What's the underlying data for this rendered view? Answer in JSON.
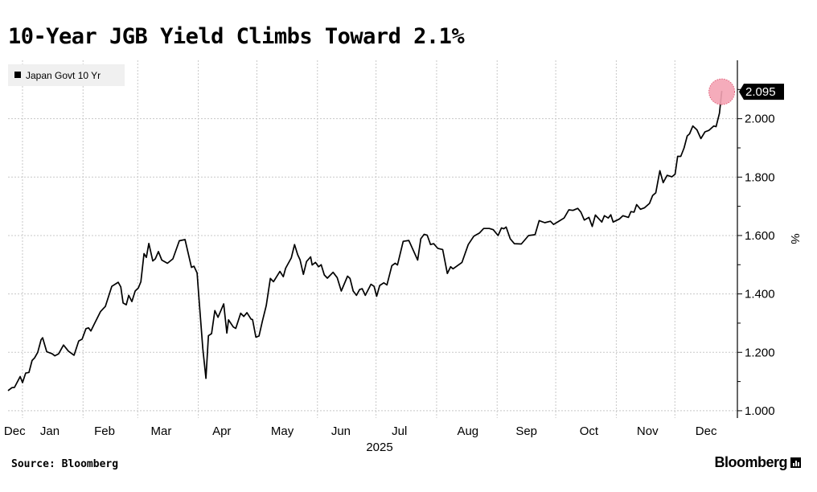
{
  "title": "10-Year JGB Yield Climbs Toward 2.1%",
  "source": "Source: Bloomberg",
  "brand": "Bloomberg",
  "colors": {
    "line": "#000000",
    "highlight": "#f4a3b4",
    "grid": "#c8c8c8",
    "legend_bg": "#f0f0f0"
  },
  "chart_data": {
    "type": "line",
    "title": "10-Year JGB Yield Climbs Toward 2.1%",
    "xlabel": "2025",
    "ylabel": "%",
    "x_unit": "days from 2025-01-01",
    "xlim": [
      -7.4,
      366
    ],
    "ylim": [
      0.975,
      2.2
    ],
    "grid": true,
    "legend": {
      "position": "top-left",
      "entries": [
        "Japan Govt 10 Yr"
      ]
    },
    "y_ticks": [
      "1.000",
      "1.200",
      "1.400",
      "1.600",
      "1.800",
      "2.000"
    ],
    "y_tick_values": [
      1.0,
      1.2,
      1.4,
      1.6,
      1.8,
      2.0
    ],
    "x_ticks": [
      {
        "label": "Dec",
        "at": -4
      },
      {
        "label": "Jan",
        "at": 14
      },
      {
        "label": "Feb",
        "at": 42
      },
      {
        "label": "Mar",
        "at": 71
      },
      {
        "label": "Apr",
        "at": 102
      },
      {
        "label": "May",
        "at": 133
      },
      {
        "label": "Jun",
        "at": 163
      },
      {
        "label": "Jul",
        "at": 193
      },
      {
        "label": "Aug",
        "at": 228
      },
      {
        "label": "Sep",
        "at": 258
      },
      {
        "label": "Oct",
        "at": 290
      },
      {
        "label": "Nov",
        "at": 320
      },
      {
        "label": "Dec",
        "at": 350
      }
    ],
    "month_boundaries": [
      0,
      31,
      59,
      90,
      120,
      151,
      181,
      212,
      243,
      273,
      304,
      334
    ],
    "last_value_label": "2.095",
    "series": [
      {
        "name": "Japan Govt 10 Yr",
        "x": [
          -7.4,
          -5.4,
          -4.1,
          -1.2,
          0,
          1.6,
          3.3,
          4.9,
          6.2,
          7.8,
          9.5,
          10.3,
          12.4,
          15.2,
          16.5,
          18.5,
          21,
          23.5,
          26.4,
          28.8,
          30.5,
          32.5,
          33.8,
          35,
          36.7,
          40,
          42.4,
          45.7,
          49,
          50.3,
          51.5,
          53.1,
          54.4,
          56,
          57.7,
          59.3,
          60.6,
          62.2,
          63.4,
          64.7,
          66.7,
          68,
          69.6,
          71.3,
          74.2,
          77,
          80.3,
          83.2,
          86.5,
          87.8,
          89.4,
          90.2,
          92.3,
          93.9,
          95.2,
          96.8,
          98.5,
          100.1,
          103,
          104.6,
          105.5,
          107.9,
          109.2,
          111.7,
          113.3,
          114.9,
          117,
          117.8,
          119.5,
          121.1,
          122.8,
          124.8,
          126.9,
          128.5,
          131.8,
          133.5,
          134.7,
          137.6,
          139.3,
          140.9,
          142.1,
          143.8,
          145.4,
          147.5,
          148.3,
          150,
          151.6,
          152.9,
          154.5,
          156.1,
          159,
          161.1,
          163.2,
          166.4,
          167.7,
          169.3,
          171,
          172.6,
          173.9,
          175.5,
          178.4,
          180,
          181.3,
          182.9,
          185,
          186.6,
          189.1,
          190.8,
          192,
          194.9,
          197.8,
          202.3,
          203.9,
          205.6,
          207.2,
          208.9,
          210.5,
          212.6,
          215.1,
          217.5,
          219.2,
          220.4,
          225,
          228.2,
          231.1,
          234,
          236.1,
          239,
          241,
          243.5,
          245.2,
          246.4,
          247.6,
          249.7,
          251.8,
          255.4,
          259.1,
          262.4,
          264.5,
          267.4,
          270.3,
          271.9,
          274.4,
          277.3,
          279.7,
          281.8,
          284.3,
          285.9,
          287.6,
          290,
          291.7,
          293.3,
          296.6,
          297.9,
          299.9,
          301.2,
          302.4,
          305.7,
          307.4,
          310.2,
          311.5,
          313.1,
          314.4,
          316.4,
          318.5,
          321,
          322.6,
          324.2,
          326.3,
          328,
          330,
          332.5,
          334.1,
          335.4,
          337,
          338.7,
          340.3,
          341.5,
          343.2,
          345.3,
          347.3,
          349.4,
          351.4,
          353.9,
          355.1,
          356.8,
          358
        ],
        "values": [
          1.069,
          1.079,
          1.08,
          1.117,
          1.096,
          1.129,
          1.131,
          1.172,
          1.181,
          1.2,
          1.243,
          1.25,
          1.202,
          1.195,
          1.188,
          1.195,
          1.225,
          1.204,
          1.19,
          1.239,
          1.245,
          1.281,
          1.284,
          1.273,
          1.296,
          1.34,
          1.357,
          1.426,
          1.44,
          1.424,
          1.369,
          1.363,
          1.395,
          1.374,
          1.41,
          1.42,
          1.442,
          1.538,
          1.525,
          1.573,
          1.513,
          1.52,
          1.545,
          1.516,
          1.505,
          1.52,
          1.582,
          1.586,
          1.491,
          1.495,
          1.472,
          1.397,
          1.213,
          1.111,
          1.257,
          1.264,
          1.343,
          1.32,
          1.366,
          1.266,
          1.311,
          1.287,
          1.282,
          1.334,
          1.323,
          1.336,
          1.314,
          1.312,
          1.252,
          1.256,
          1.307,
          1.36,
          1.453,
          1.442,
          1.477,
          1.459,
          1.488,
          1.523,
          1.569,
          1.534,
          1.517,
          1.467,
          1.511,
          1.527,
          1.499,
          1.508,
          1.493,
          1.5,
          1.465,
          1.454,
          1.474,
          1.456,
          1.41,
          1.461,
          1.453,
          1.41,
          1.395,
          1.415,
          1.418,
          1.395,
          1.433,
          1.426,
          1.392,
          1.429,
          1.438,
          1.431,
          1.497,
          1.505,
          1.499,
          1.58,
          1.583,
          1.516,
          1.589,
          1.604,
          1.601,
          1.569,
          1.572,
          1.556,
          1.552,
          1.47,
          1.493,
          1.486,
          1.508,
          1.569,
          1.598,
          1.609,
          1.624,
          1.624,
          1.62,
          1.6,
          1.626,
          1.623,
          1.629,
          1.589,
          1.572,
          1.571,
          1.6,
          1.603,
          1.651,
          1.644,
          1.649,
          1.638,
          1.648,
          1.66,
          1.688,
          1.686,
          1.693,
          1.68,
          1.653,
          1.662,
          1.631,
          1.67,
          1.646,
          1.668,
          1.66,
          1.671,
          1.646,
          1.657,
          1.668,
          1.662,
          1.682,
          1.68,
          1.706,
          1.69,
          1.695,
          1.71,
          1.737,
          1.746,
          1.822,
          1.781,
          1.806,
          1.801,
          1.81,
          1.871,
          1.871,
          1.9,
          1.941,
          1.948,
          1.975,
          1.962,
          1.932,
          1.955,
          1.96,
          1.975,
          1.973,
          2.019,
          2.095
        ]
      }
    ]
  }
}
